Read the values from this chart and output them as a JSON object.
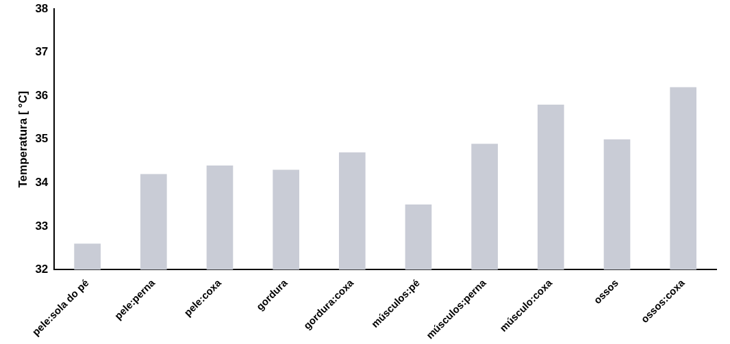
{
  "chart_data": {
    "type": "bar",
    "ylabel": "Temperatura [ °C]",
    "categories": [
      "pele:sola do pé",
      "pele:perna",
      "pele:coxa",
      "gordura",
      "gordura:coxa",
      "músculos:pé",
      "músculos:perna",
      "músculo:coxa",
      "ossos",
      "ossos:coxa"
    ],
    "values": [
      32.6,
      34.2,
      34.4,
      34.3,
      34.7,
      33.5,
      34.9,
      35.8,
      35.0,
      36.2
    ],
    "color": "#c9ccd6",
    "ylim": [
      32,
      38
    ],
    "yticks": [
      32,
      33,
      34,
      35,
      36,
      37,
      38
    ],
    "grid": false
  }
}
